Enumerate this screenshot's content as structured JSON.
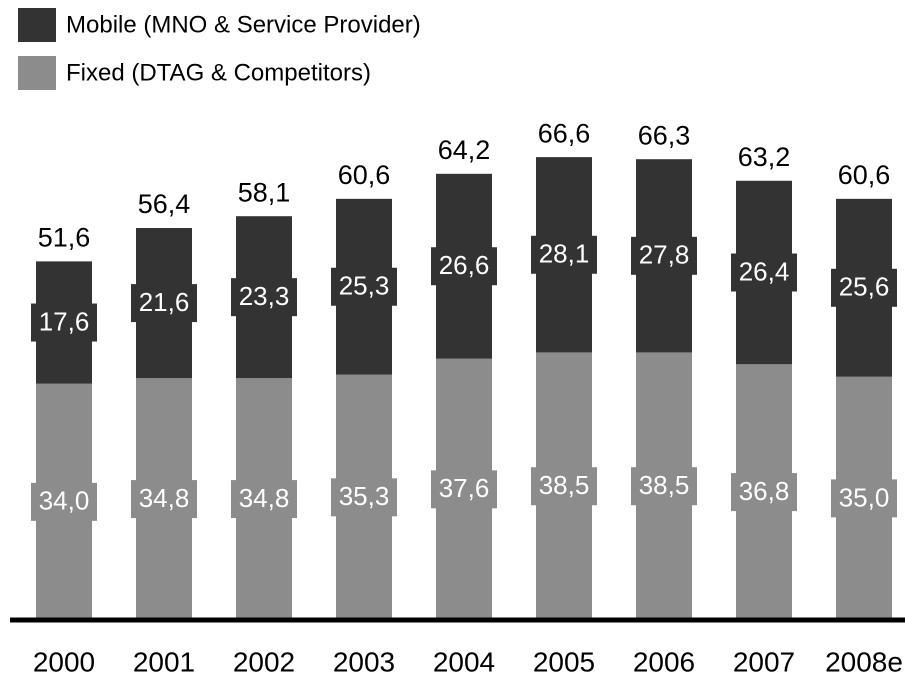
{
  "chart_data": {
    "type": "stacked_bar",
    "categories": [
      "2000",
      "2001",
      "2002",
      "2003",
      "2004",
      "2005",
      "2006",
      "2007",
      "2008e"
    ],
    "series": [
      {
        "name": "Fixed (DTAG & Competitors)",
        "color": "#8c8c8c",
        "values": [
          34.0,
          34.8,
          34.8,
          35.3,
          37.6,
          38.5,
          38.5,
          36.8,
          35.0
        ],
        "value_labels": [
          "34,0",
          "34,8",
          "34,8",
          "35,3",
          "37,6",
          "38,5",
          "38,5",
          "36,8",
          "35,0"
        ]
      },
      {
        "name": "Mobile (MNO & Service Provider)",
        "color": "#333333",
        "values": [
          17.6,
          21.6,
          23.3,
          25.3,
          26.6,
          28.1,
          27.8,
          26.4,
          25.6
        ],
        "value_labels": [
          "17,6",
          "21,6",
          "23,3",
          "25,3",
          "26,6",
          "28,1",
          "27,8",
          "26,4",
          "25,6"
        ]
      }
    ],
    "totals": [
      51.6,
      56.4,
      58.1,
      60.6,
      64.2,
      66.6,
      66.3,
      63.2,
      60.6
    ],
    "total_labels": [
      "51,6",
      "56,4",
      "58,1",
      "60,6",
      "64,2",
      "66,6",
      "66,3",
      "63,2",
      "60,6"
    ],
    "ylim": [
      0,
      75
    ]
  }
}
